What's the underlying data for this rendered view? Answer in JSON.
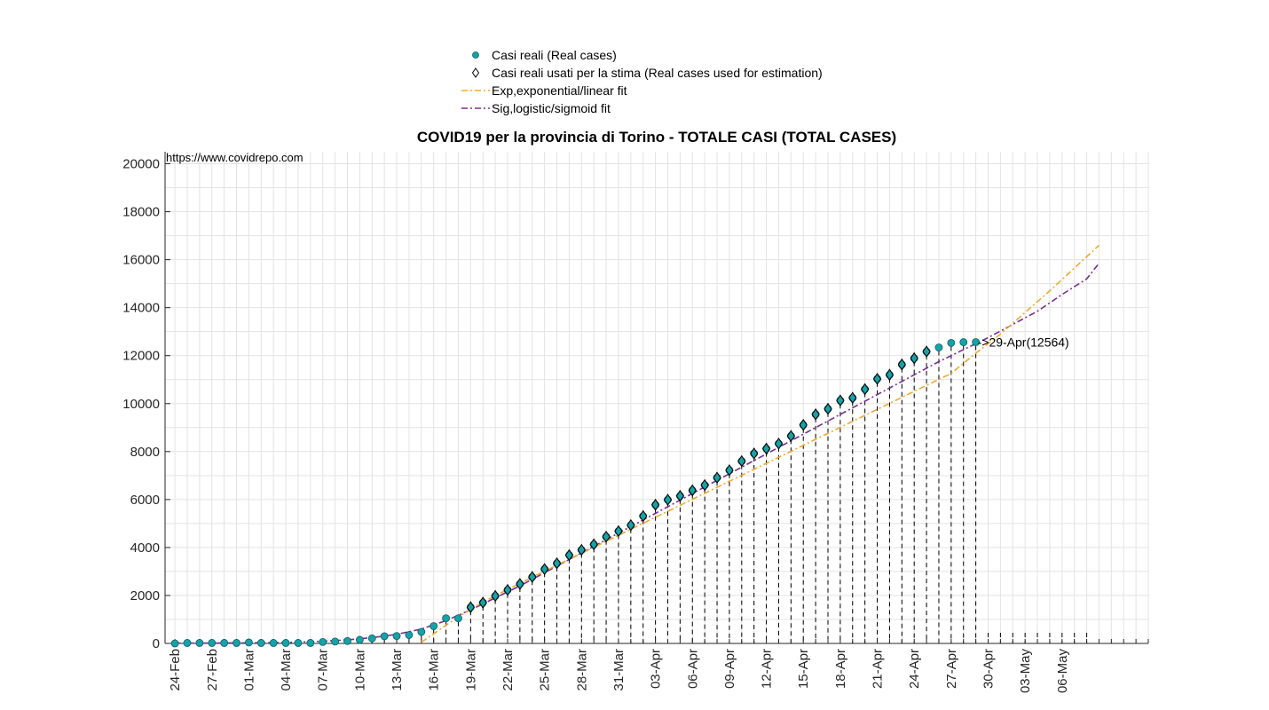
{
  "chart_data": {
    "type": "scatter",
    "title": "COVID19 per la provincia di Torino - TOTALE CASI (TOTAL CASES)",
    "source_text": "https://www.covidrepo.com",
    "xlabel": "",
    "ylabel": "",
    "ylim": [
      0,
      20500
    ],
    "yticks": [
      0,
      2000,
      4000,
      6000,
      8000,
      10000,
      12000,
      14000,
      16000,
      18000,
      20000
    ],
    "x_start_date": "24-Feb",
    "x_range_days": [
      -0.8,
      79
    ],
    "xtick_labels": [
      "24-Feb",
      "27-Feb",
      "01-Mar",
      "04-Mar",
      "07-Mar",
      "10-Mar",
      "13-Mar",
      "16-Mar",
      "19-Mar",
      "22-Mar",
      "25-Mar",
      "28-Mar",
      "31-Mar",
      "03-Apr",
      "06-Apr",
      "09-Apr",
      "12-Apr",
      "15-Apr",
      "18-Apr",
      "21-Apr",
      "24-Apr",
      "27-Apr",
      "30-Apr",
      "03-May",
      "06-May"
    ],
    "grid": true,
    "legend_position": "top-center",
    "colors": {
      "real": "#17a2a8",
      "real_edge": "#0b5e63",
      "estimation_marker": "#000000",
      "exp_fit": "#f0a830",
      "sig_fit": "#7b2d8e",
      "droplines": "#000000"
    },
    "legend": [
      {
        "label": "Casi reali (Real cases)",
        "kind": "real"
      },
      {
        "label": "Casi reali usati per la stima (Real cases used for estimation)",
        "kind": "estimation"
      },
      {
        "label": "Exp,exponential/linear fit",
        "kind": "exp"
      },
      {
        "label": "Sig,logistic/sigmoid fit",
        "kind": "sig"
      }
    ],
    "series": [
      {
        "name": "Casi reali (Real cases)",
        "x_dates": [
          "24-Feb",
          "25-Feb",
          "26-Feb",
          "27-Feb",
          "28-Feb",
          "29-Feb",
          "01-Mar",
          "02-Mar",
          "03-Mar",
          "04-Mar",
          "05-Mar",
          "06-Mar",
          "07-Mar",
          "08-Mar",
          "09-Mar",
          "10-Mar",
          "11-Mar",
          "12-Mar",
          "13-Mar",
          "14-Mar",
          "15-Mar",
          "16-Mar",
          "17-Mar",
          "18-Mar",
          "19-Mar",
          "20-Mar",
          "21-Mar",
          "22-Mar",
          "23-Mar",
          "24-Mar",
          "25-Mar",
          "26-Mar",
          "27-Mar",
          "28-Mar",
          "29-Mar",
          "30-Mar",
          "31-Mar",
          "01-Apr",
          "02-Apr",
          "03-Apr",
          "04-Apr",
          "05-Apr",
          "06-Apr",
          "07-Apr",
          "08-Apr",
          "09-Apr",
          "10-Apr",
          "11-Apr",
          "12-Apr",
          "13-Apr",
          "14-Apr",
          "15-Apr",
          "16-Apr",
          "17-Apr",
          "18-Apr",
          "19-Apr",
          "20-Apr",
          "21-Apr",
          "22-Apr",
          "23-Apr",
          "24-Apr",
          "25-Apr",
          "26-Apr",
          "27-Apr",
          "28-Apr",
          "29-Apr"
        ],
        "y": [
          0,
          20,
          20,
          20,
          20,
          20,
          40,
          20,
          20,
          20,
          20,
          20,
          60,
          80,
          100,
          150,
          210,
          300,
          310,
          350,
          480,
          720,
          1050,
          1050,
          1510,
          1700,
          1980,
          2230,
          2480,
          2770,
          3100,
          3340,
          3680,
          3900,
          4130,
          4450,
          4680,
          4930,
          5310,
          5780,
          5990,
          6150,
          6380,
          6600,
          6910,
          7220,
          7600,
          7920,
          8120,
          8330,
          8650,
          9110,
          9550,
          9780,
          10130,
          10240,
          10600,
          11030,
          11200,
          11630,
          11890,
          12170,
          12340,
          12530,
          12560,
          12564
        ]
      },
      {
        "name": "Casi reali usati per la stima (Real cases used for estimation)",
        "x_dates": [
          "19-Mar",
          "20-Mar",
          "21-Mar",
          "22-Mar",
          "23-Mar",
          "24-Mar",
          "25-Mar",
          "26-Mar",
          "27-Mar",
          "28-Mar",
          "29-Mar",
          "30-Mar",
          "31-Mar",
          "01-Apr",
          "02-Apr",
          "03-Apr",
          "04-Apr",
          "05-Apr",
          "06-Apr",
          "07-Apr",
          "08-Apr",
          "09-Apr",
          "10-Apr",
          "11-Apr",
          "12-Apr",
          "13-Apr",
          "14-Apr",
          "15-Apr",
          "16-Apr",
          "17-Apr",
          "18-Apr",
          "19-Apr",
          "20-Apr",
          "21-Apr",
          "22-Apr",
          "23-Apr",
          "24-Apr",
          "25-Apr"
        ],
        "y": [
          1510,
          1700,
          1980,
          2230,
          2480,
          2770,
          3100,
          3340,
          3680,
          3900,
          4130,
          4450,
          4680,
          4930,
          5310,
          5780,
          5990,
          6150,
          6380,
          6600,
          6910,
          7220,
          7600,
          7920,
          8120,
          8330,
          8650,
          9110,
          9550,
          9780,
          10130,
          10240,
          10600,
          11030,
          11200,
          11630,
          11890,
          12170
        ]
      },
      {
        "name": "Exp,exponential/linear fit",
        "x_dates": [
          "15-Mar",
          "16-Mar",
          "17-Mar",
          "18-Mar",
          "19-Mar",
          "20-Mar",
          "21-Mar",
          "22-Mar",
          "24-Mar",
          "26-Mar",
          "28-Mar",
          "30-Mar",
          "01-Apr",
          "03-Apr",
          "05-Apr",
          "07-Apr",
          "09-Apr",
          "11-Apr",
          "13-Apr",
          "15-Apr",
          "17-Apr",
          "19-Apr",
          "21-Apr",
          "23-Apr",
          "25-Apr",
          "27-Apr",
          "29-Apr",
          "01-May",
          "03-May",
          "05-May",
          "07-May",
          "09-May"
        ],
        "y": [
          50,
          400,
          760,
          1100,
          1420,
          1720,
          1990,
          2250,
          2760,
          3260,
          3760,
          4260,
          4760,
          5260,
          5760,
          6260,
          6760,
          7260,
          7760,
          8260,
          8760,
          9260,
          9760,
          10260,
          10760,
          11260,
          12100,
          12900,
          13800,
          14700,
          15650,
          16600
        ]
      },
      {
        "name": "Sig,logistic/sigmoid fit",
        "x_dates": [
          "24-Feb",
          "27-Feb",
          "01-Mar",
          "04-Mar",
          "07-Mar",
          "09-Mar",
          "11-Mar",
          "13-Mar",
          "15-Mar",
          "17-Mar",
          "19-Mar",
          "21-Mar",
          "23-Mar",
          "25-Mar",
          "27-Mar",
          "29-Mar",
          "31-Mar",
          "02-Apr",
          "04-Apr",
          "06-Apr",
          "08-Apr",
          "10-Apr",
          "12-Apr",
          "14-Apr",
          "16-Apr",
          "18-Apr",
          "20-Apr",
          "22-Apr",
          "24-Apr",
          "26-Apr",
          "28-Apr",
          "30-Apr",
          "02-May",
          "04-May",
          "06-May",
          "08-May",
          "09-May"
        ],
        "y": [
          10,
          15,
          25,
          40,
          90,
          150,
          240,
          380,
          600,
          950,
          1400,
          1900,
          2400,
          2950,
          3500,
          4050,
          4600,
          5150,
          5700,
          6250,
          6800,
          7350,
          7900,
          8450,
          9000,
          9550,
          10100,
          10650,
          11200,
          11750,
          12250,
          12750,
          13300,
          13850,
          14550,
          15200,
          15850
        ]
      }
    ],
    "droplines_end_date": "08-May",
    "annotation": {
      "text": "->29-Apr(12564)",
      "x_date": "29-Apr",
      "y": 12564
    }
  }
}
